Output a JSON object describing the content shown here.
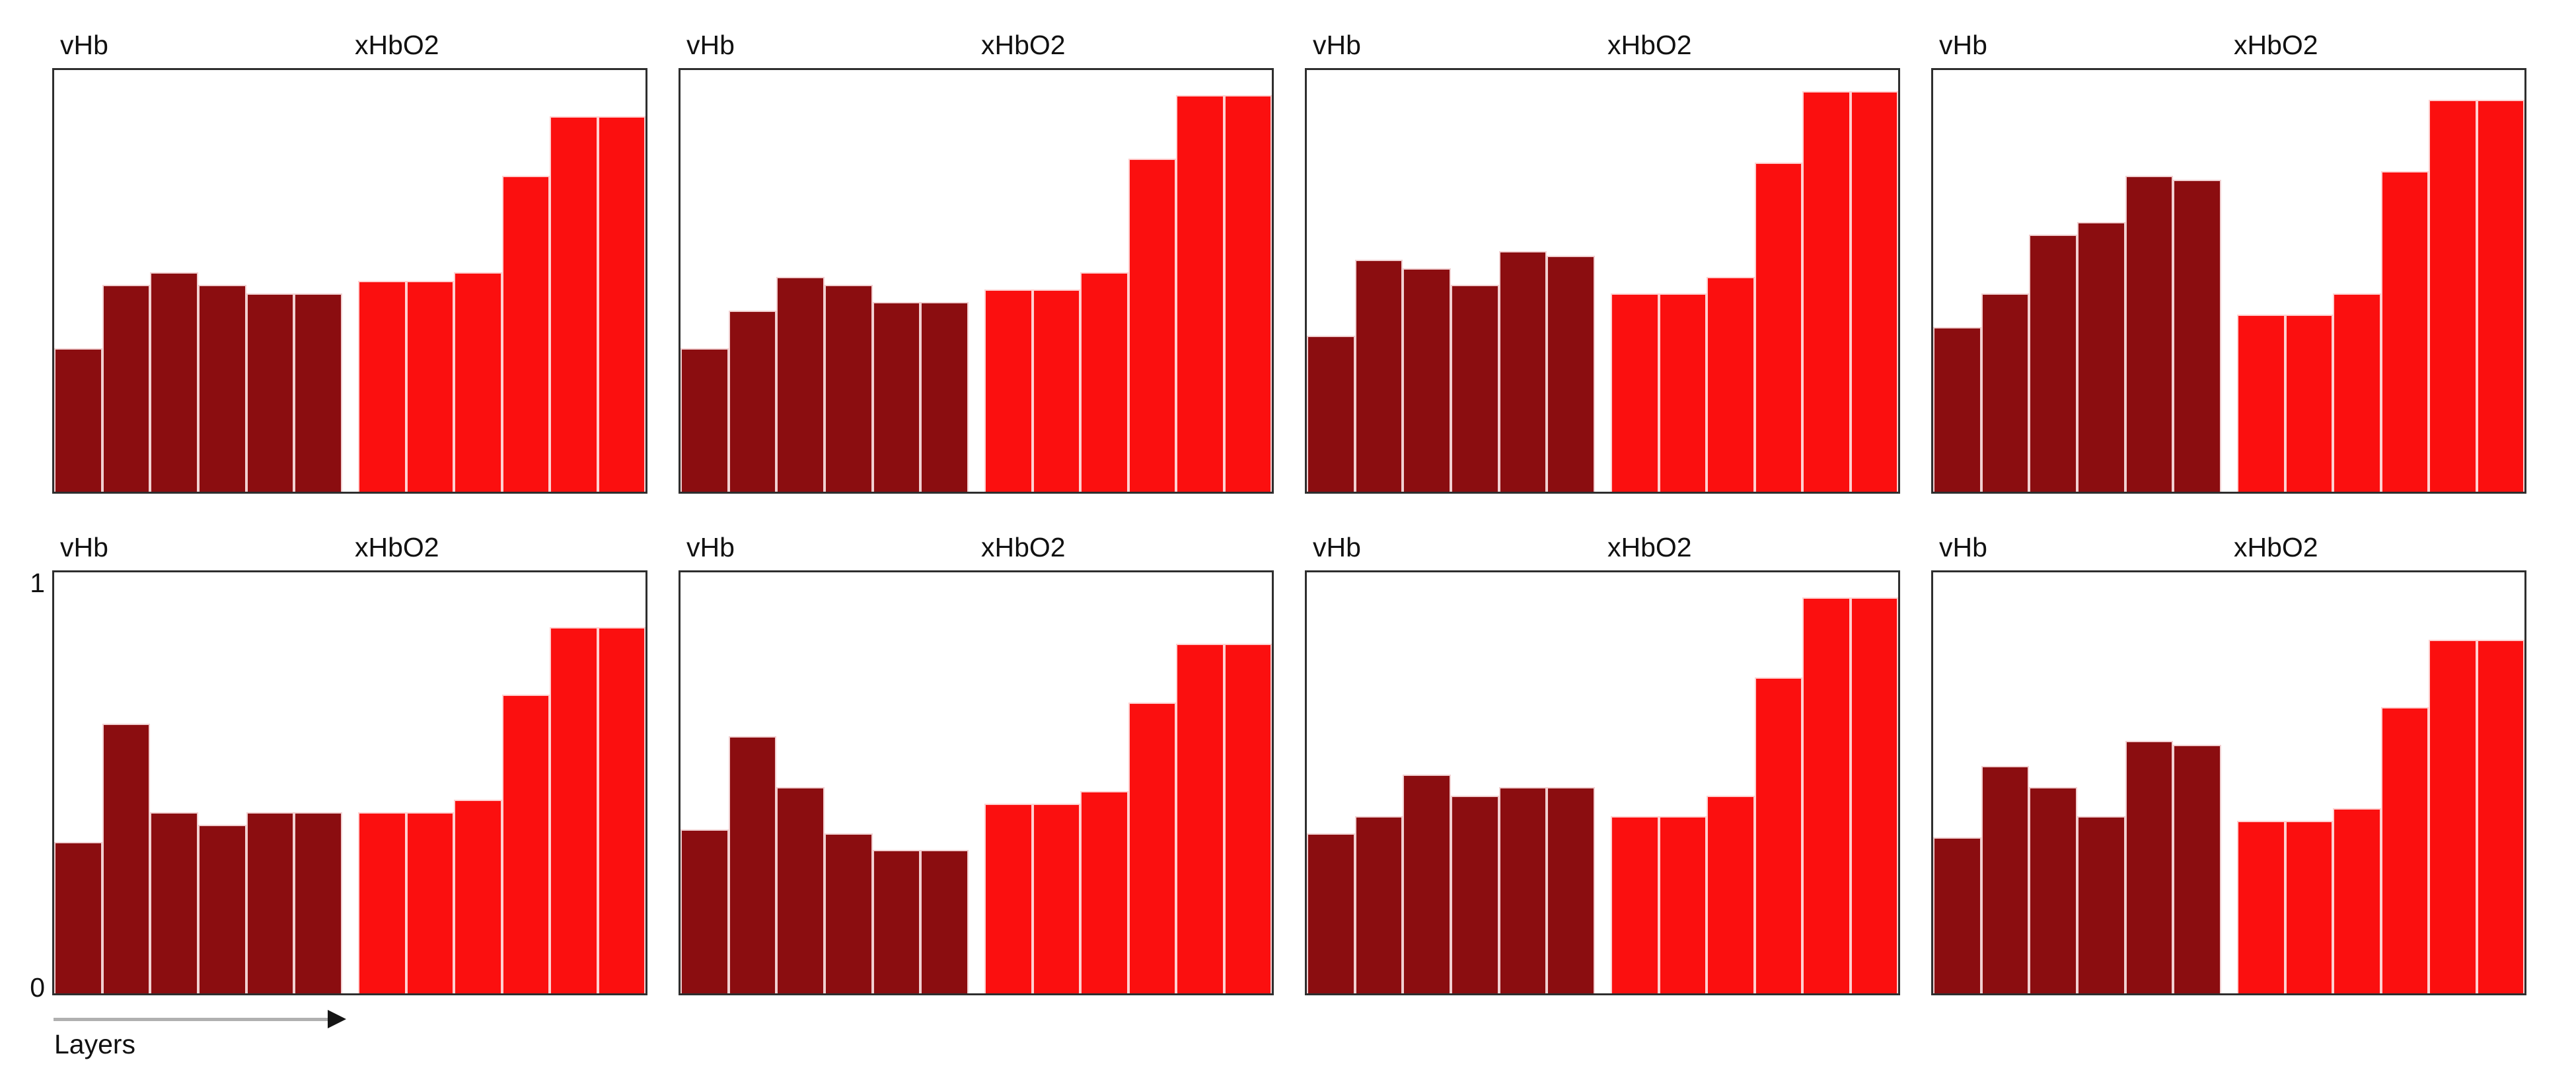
{
  "labels": {
    "vHb": "vHb",
    "xHbO2": "xHbO2",
    "layers": "Layers",
    "y_max": "1",
    "y_min": "0"
  },
  "colors": {
    "vHb_fill": "#8b0d10",
    "xHbO2_fill": "#fb0f0f",
    "bar_edge": "rgba(255,236,236,0.88)",
    "panel_border": "#2e2e2e",
    "arrow_line": "#b0b0b0",
    "arrow_head": "#151515",
    "text": "#111111",
    "background": "#ffffff"
  },
  "chart_data": {
    "type": "bar",
    "layout": "2 rows x 4 columns of identical small-multiple panels",
    "title": "",
    "xlabel": "Layers",
    "ylabel": "",
    "ylim": [
      0,
      1
    ],
    "yticks": [
      "0",
      "1"
    ],
    "x_description": "6 layers per series, increasing left to right (arrow under bottom-left panel)",
    "series_labels": [
      "vHb",
      "xHbO2"
    ],
    "legend_position": "series names above each panel: vHb over left group, xHbO2 over right group",
    "grid": "off",
    "panels": [
      {
        "row": 1,
        "col": 1,
        "vHb": [
          0.34,
          0.49,
          0.52,
          0.49,
          0.47,
          0.47
        ],
        "xHbO2": [
          0.5,
          0.5,
          0.52,
          0.75,
          0.89,
          0.89
        ]
      },
      {
        "row": 1,
        "col": 2,
        "vHb": [
          0.34,
          0.43,
          0.51,
          0.49,
          0.45,
          0.45
        ],
        "xHbO2": [
          0.48,
          0.48,
          0.52,
          0.79,
          0.94,
          0.94
        ]
      },
      {
        "row": 1,
        "col": 3,
        "vHb": [
          0.37,
          0.55,
          0.53,
          0.49,
          0.57,
          0.56
        ],
        "xHbO2": [
          0.47,
          0.47,
          0.51,
          0.78,
          0.95,
          0.95
        ]
      },
      {
        "row": 1,
        "col": 4,
        "vHb": [
          0.39,
          0.47,
          0.61,
          0.64,
          0.75,
          0.74
        ],
        "xHbO2": [
          0.42,
          0.42,
          0.47,
          0.76,
          0.93,
          0.93
        ]
      },
      {
        "row": 2,
        "col": 1,
        "vHb": [
          0.36,
          0.64,
          0.43,
          0.4,
          0.43,
          0.43
        ],
        "xHbO2": [
          0.43,
          0.43,
          0.46,
          0.71,
          0.87,
          0.87
        ]
      },
      {
        "row": 2,
        "col": 2,
        "vHb": [
          0.39,
          0.61,
          0.49,
          0.38,
          0.34,
          0.34
        ],
        "xHbO2": [
          0.45,
          0.45,
          0.48,
          0.69,
          0.83,
          0.83
        ]
      },
      {
        "row": 2,
        "col": 3,
        "vHb": [
          0.38,
          0.42,
          0.52,
          0.47,
          0.49,
          0.49
        ],
        "xHbO2": [
          0.42,
          0.42,
          0.47,
          0.75,
          0.94,
          0.94
        ]
      },
      {
        "row": 2,
        "col": 4,
        "vHb": [
          0.37,
          0.54,
          0.49,
          0.42,
          0.6,
          0.59
        ],
        "xHbO2": [
          0.41,
          0.41,
          0.44,
          0.68,
          0.84,
          0.84
        ]
      }
    ]
  }
}
